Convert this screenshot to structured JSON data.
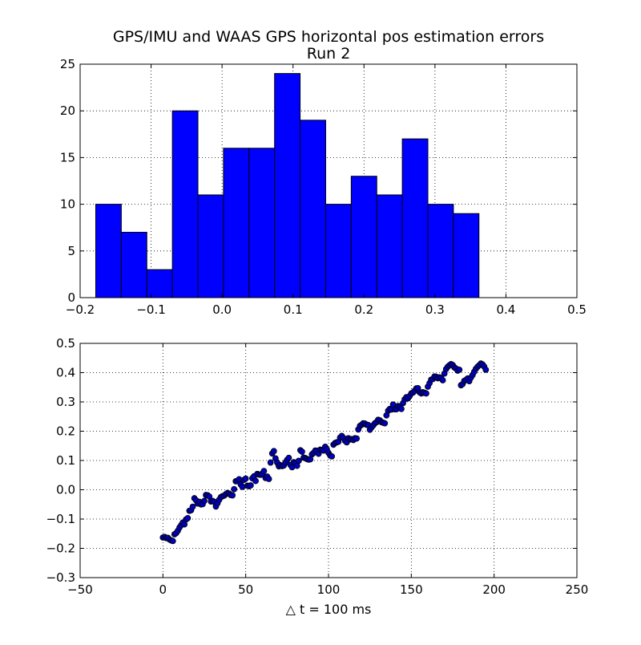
{
  "chart_data": [
    {
      "type": "bar",
      "title": "GPS/IMU and WAAS GPS horizontal pos estimation errors",
      "subtitle": "Run 2",
      "xlabel": "",
      "ylabel": "",
      "bins": [
        {
          "left": -0.178,
          "right": -0.142,
          "count": 10
        },
        {
          "left": -0.142,
          "right": -0.106,
          "count": 7
        },
        {
          "left": -0.106,
          "right": -0.07,
          "count": 3
        },
        {
          "left": -0.07,
          "right": -0.034,
          "count": 20
        },
        {
          "left": -0.034,
          "right": 0.002,
          "count": 11
        },
        {
          "left": 0.002,
          "right": 0.038,
          "count": 16
        },
        {
          "left": 0.038,
          "right": 0.074,
          "count": 16
        },
        {
          "left": 0.074,
          "right": 0.11,
          "count": 24
        },
        {
          "left": 0.11,
          "right": 0.146,
          "count": 19
        },
        {
          "left": 0.146,
          "right": 0.182,
          "count": 10
        },
        {
          "left": 0.182,
          "right": 0.218,
          "count": 13
        },
        {
          "left": 0.218,
          "right": 0.254,
          "count": 11
        },
        {
          "left": 0.254,
          "right": 0.29,
          "count": 17
        },
        {
          "left": 0.29,
          "right": 0.326,
          "count": 10
        },
        {
          "left": 0.326,
          "right": 0.362,
          "count": 9
        }
      ],
      "xlim": [
        -0.2,
        0.5
      ],
      "ylim": [
        0,
        25
      ],
      "xticks": [
        "−0.2",
        "−0.1",
        "0.0",
        "0.1",
        "0.2",
        "0.3",
        "0.4",
        "0.5"
      ],
      "xtick_values": [
        -0.2,
        -0.1,
        0.0,
        0.1,
        0.2,
        0.3,
        0.4,
        0.5
      ],
      "yticks": [
        "0",
        "5",
        "10",
        "15",
        "20",
        "25"
      ],
      "ytick_values": [
        0,
        5,
        10,
        15,
        20,
        25
      ],
      "grid": true,
      "bar_color": "#0000ff"
    },
    {
      "type": "scatter",
      "xlabel": "△ t = 100 ms",
      "ylabel": "",
      "xlim": [
        -50,
        250
      ],
      "ylim": [
        -0.3,
        0.5
      ],
      "xticks": [
        "−50",
        "0",
        "50",
        "100",
        "150",
        "200",
        "250"
      ],
      "xtick_values": [
        -50,
        0,
        50,
        100,
        150,
        200,
        250
      ],
      "yticks": [
        "−0.3",
        "−0.2",
        "−0.1",
        "0.0",
        "0.1",
        "0.2",
        "0.3",
        "0.4",
        "0.5"
      ],
      "ytick_values": [
        -0.3,
        -0.2,
        -0.1,
        0.0,
        0.1,
        0.2,
        0.3,
        0.4,
        0.5
      ],
      "grid": true,
      "marker_color": "#0000bf",
      "x": [
        0,
        1,
        2,
        3,
        4,
        5,
        6,
        7,
        8,
        9,
        10,
        11,
        12,
        13,
        14,
        15,
        16,
        17,
        18,
        19,
        20,
        21,
        22,
        23,
        24,
        25,
        26,
        27,
        28,
        29,
        30,
        31,
        32,
        33,
        34,
        35,
        36,
        37,
        38,
        39,
        40,
        41,
        42,
        43,
        44,
        45,
        46,
        47,
        48,
        49,
        50,
        51,
        52,
        53,
        54,
        55,
        56,
        57,
        58,
        59,
        60,
        61,
        62,
        63,
        64,
        65,
        66,
        67,
        68,
        69,
        70,
        71,
        72,
        73,
        74,
        75,
        76,
        77,
        78,
        79,
        80,
        81,
        82,
        83,
        84,
        85,
        86,
        87,
        88,
        89,
        90,
        91,
        92,
        93,
        94,
        95,
        96,
        97,
        98,
        99,
        100,
        101,
        102,
        103,
        104,
        105,
        106,
        107,
        108,
        109,
        110,
        111,
        112,
        113,
        114,
        115,
        116,
        117,
        118,
        119,
        120,
        121,
        122,
        123,
        124,
        125,
        126,
        127,
        128,
        129,
        130,
        131,
        132,
        133,
        134,
        135,
        136,
        137,
        138,
        139,
        140,
        141,
        142,
        143,
        144,
        145,
        146,
        147,
        148,
        149,
        150,
        151,
        152,
        153,
        154,
        155,
        156,
        157,
        158,
        159,
        160,
        161,
        162,
        163,
        164,
        165,
        166,
        167,
        168,
        169,
        170,
        171,
        172,
        173,
        174,
        175,
        176,
        177,
        178,
        179,
        180,
        181,
        182,
        183,
        184,
        185,
        186,
        187,
        188,
        189,
        190,
        191,
        192,
        193,
        194,
        195
      ],
      "y": [
        -0.163,
        -0.161,
        -0.165,
        -0.164,
        -0.17,
        -0.173,
        -0.175,
        -0.152,
        -0.148,
        -0.14,
        -0.129,
        -0.121,
        -0.112,
        -0.118,
        -0.101,
        -0.097,
        -0.072,
        -0.07,
        -0.058,
        -0.029,
        -0.036,
        -0.047,
        -0.041,
        -0.05,
        -0.049,
        -0.038,
        -0.018,
        -0.019,
        -0.023,
        -0.04,
        -0.038,
        -0.041,
        -0.057,
        -0.046,
        -0.034,
        -0.025,
        -0.022,
        -0.02,
        -0.015,
        -0.011,
        -0.013,
        -0.018,
        -0.019,
        0.002,
        0.029,
        0.03,
        0.036,
        0.018,
        0.01,
        0.034,
        0.038,
        0.014,
        0.012,
        0.015,
        0.039,
        0.046,
        0.03,
        0.054,
        0.052,
        0.051,
        0.055,
        0.064,
        0.04,
        0.045,
        0.037,
        0.093,
        0.124,
        0.132,
        0.107,
        0.093,
        0.08,
        0.084,
        0.081,
        0.083,
        0.093,
        0.102,
        0.109,
        0.085,
        0.077,
        0.094,
        0.09,
        0.082,
        0.099,
        0.135,
        0.13,
        0.11,
        0.108,
        0.105,
        0.103,
        0.104,
        0.121,
        0.126,
        0.134,
        0.133,
        0.123,
        0.137,
        0.136,
        0.134,
        0.147,
        0.138,
        0.126,
        0.117,
        0.114,
        0.154,
        0.16,
        0.162,
        0.164,
        0.178,
        0.184,
        0.177,
        0.167,
        0.162,
        0.176,
        0.172,
        0.173,
        0.17,
        0.176,
        0.175,
        0.206,
        0.218,
        0.222,
        0.227,
        0.226,
        0.222,
        0.221,
        0.205,
        0.213,
        0.22,
        0.227,
        0.231,
        0.239,
        0.237,
        0.231,
        0.229,
        0.227,
        0.254,
        0.27,
        0.276,
        0.274,
        0.291,
        0.275,
        0.275,
        0.286,
        0.282,
        0.276,
        0.296,
        0.309,
        0.316,
        0.312,
        0.32,
        0.329,
        0.332,
        0.338,
        0.346,
        0.347,
        0.333,
        0.329,
        0.333,
        0.331,
        0.329,
        0.352,
        0.364,
        0.376,
        0.378,
        0.387,
        0.386,
        0.381,
        0.384,
        0.381,
        0.374,
        0.397,
        0.412,
        0.42,
        0.425,
        0.429,
        0.426,
        0.418,
        0.414,
        0.407,
        0.41,
        0.357,
        0.361,
        0.372,
        0.375,
        0.38,
        0.371,
        0.383,
        0.392,
        0.403,
        0.413,
        0.42,
        0.425,
        0.431,
        0.428,
        0.421,
        0.41
      ]
    }
  ]
}
